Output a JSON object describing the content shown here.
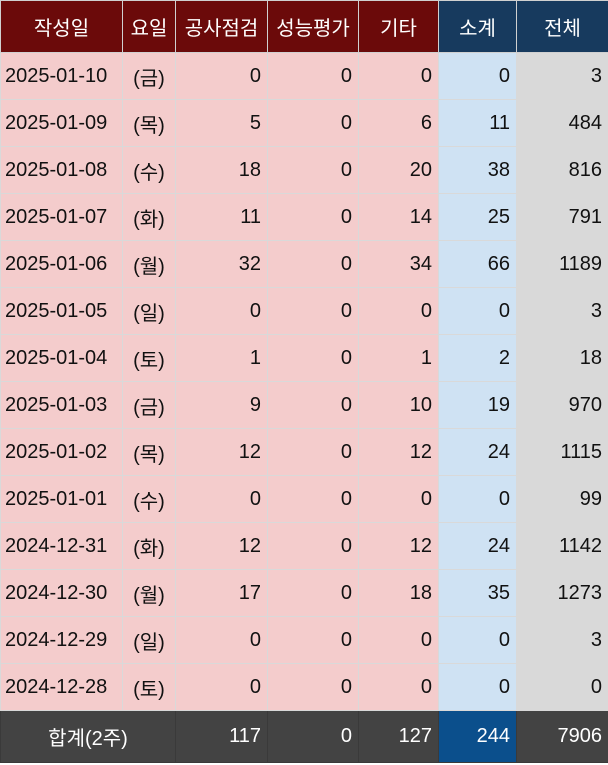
{
  "headers": [
    "작성일",
    "요일",
    "공사점검",
    "성능평가",
    "기타",
    "소계",
    "전체"
  ],
  "rows": [
    {
      "date": "2025-01-10",
      "day": "(금)",
      "inspection": "0",
      "evaluation": "0",
      "other": "0",
      "subtotal": "0",
      "total": "3"
    },
    {
      "date": "2025-01-09",
      "day": "(목)",
      "inspection": "5",
      "evaluation": "0",
      "other": "6",
      "subtotal": "11",
      "total": "484"
    },
    {
      "date": "2025-01-08",
      "day": "(수)",
      "inspection": "18",
      "evaluation": "0",
      "other": "20",
      "subtotal": "38",
      "total": "816"
    },
    {
      "date": "2025-01-07",
      "day": "(화)",
      "inspection": "11",
      "evaluation": "0",
      "other": "14",
      "subtotal": "25",
      "total": "791"
    },
    {
      "date": "2025-01-06",
      "day": "(월)",
      "inspection": "32",
      "evaluation": "0",
      "other": "34",
      "subtotal": "66",
      "total": "1189"
    },
    {
      "date": "2025-01-05",
      "day": "(일)",
      "inspection": "0",
      "evaluation": "0",
      "other": "0",
      "subtotal": "0",
      "total": "3"
    },
    {
      "date": "2025-01-04",
      "day": "(토)",
      "inspection": "1",
      "evaluation": "0",
      "other": "1",
      "subtotal": "2",
      "total": "18"
    },
    {
      "date": "2025-01-03",
      "day": "(금)",
      "inspection": "9",
      "evaluation": "0",
      "other": "10",
      "subtotal": "19",
      "total": "970"
    },
    {
      "date": "2025-01-02",
      "day": "(목)",
      "inspection": "12",
      "evaluation": "0",
      "other": "12",
      "subtotal": "24",
      "total": "1115"
    },
    {
      "date": "2025-01-01",
      "day": "(수)",
      "inspection": "0",
      "evaluation": "0",
      "other": "0",
      "subtotal": "0",
      "total": "99"
    },
    {
      "date": "2024-12-31",
      "day": "(화)",
      "inspection": "12",
      "evaluation": "0",
      "other": "12",
      "subtotal": "24",
      "total": "1142"
    },
    {
      "date": "2024-12-30",
      "day": "(월)",
      "inspection": "17",
      "evaluation": "0",
      "other": "18",
      "subtotal": "35",
      "total": "1273"
    },
    {
      "date": "2024-12-29",
      "day": "(일)",
      "inspection": "0",
      "evaluation": "0",
      "other": "0",
      "subtotal": "0",
      "total": "3"
    },
    {
      "date": "2024-12-28",
      "day": "(토)",
      "inspection": "0",
      "evaluation": "0",
      "other": "0",
      "subtotal": "0",
      "total": "0"
    }
  ],
  "footer": {
    "label": "합계(2주)",
    "inspection": "117",
    "evaluation": "0",
    "other": "127",
    "subtotal": "244",
    "total": "7906"
  },
  "colors": {
    "header_dark_red": "#6b0a0a",
    "header_navy": "#173a5e",
    "row_pink": "#f4cccc",
    "row_blue": "#cfe2f3",
    "row_gray": "#d9d9d9",
    "footer_gray": "#434343",
    "footer_blue": "#0b4f8c"
  }
}
